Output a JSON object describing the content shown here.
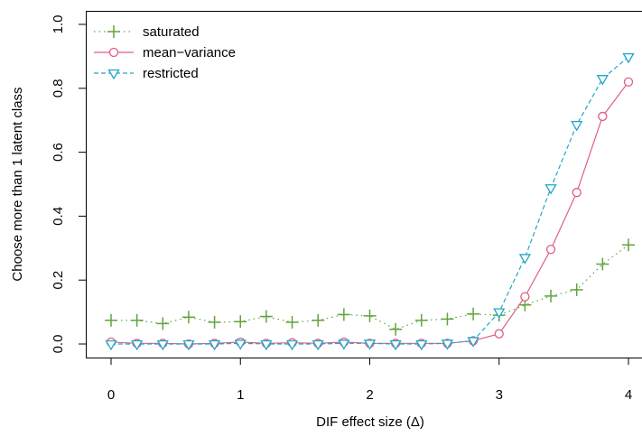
{
  "chart_data": {
    "type": "line",
    "xlabel": "DIF effect size (Δ)",
    "ylabel": "Choose more than 1 latent class",
    "xlim": [
      -0.14,
      4.14
    ],
    "ylim": [
      -0.04,
      1.04
    ],
    "x_ticks": [
      "0",
      "1",
      "2",
      "3",
      "4"
    ],
    "y_ticks": [
      "0.0",
      "0.2",
      "0.4",
      "0.6",
      "0.8",
      "1.0"
    ],
    "grid": false,
    "legend_position": "top-left",
    "x": [
      0,
      0.2,
      0.4,
      0.6,
      0.8,
      1.0,
      1.2,
      1.4,
      1.6,
      1.8,
      2.0,
      2.2,
      2.4,
      2.6,
      2.8,
      3.0,
      3.2,
      3.4,
      3.6,
      3.8,
      4.0
    ],
    "series": [
      {
        "name": "saturated",
        "color": "#61a33f",
        "marker": "plus",
        "line_style": "dotted",
        "values": [
          0.074,
          0.074,
          0.064,
          0.084,
          0.068,
          0.07,
          0.086,
          0.068,
          0.074,
          0.092,
          0.088,
          0.046,
          0.074,
          0.078,
          0.094,
          0.09,
          0.122,
          0.15,
          0.17,
          0.25,
          0.31
        ]
      },
      {
        "name": "mean−variance",
        "color": "#df5e84",
        "marker": "circle",
        "line_style": "solid",
        "values": [
          0.006,
          0.002,
          0.002,
          0.0,
          0.002,
          0.006,
          0.002,
          0.004,
          0.002,
          0.006,
          0.002,
          0.002,
          0.002,
          0.002,
          0.01,
          0.032,
          0.148,
          0.296,
          0.474,
          0.712,
          0.82
        ]
      },
      {
        "name": "restricted",
        "color": "#1fa6c8",
        "marker": "triangle-down",
        "line_style": "dashed",
        "values": [
          0.0,
          0.0,
          0.0,
          0.0,
          0.0,
          0.002,
          0.0,
          0.0,
          0.0,
          0.002,
          0.002,
          0.0,
          0.0,
          0.002,
          0.01,
          0.1,
          0.27,
          0.488,
          0.686,
          0.83,
          0.898
        ]
      }
    ]
  }
}
